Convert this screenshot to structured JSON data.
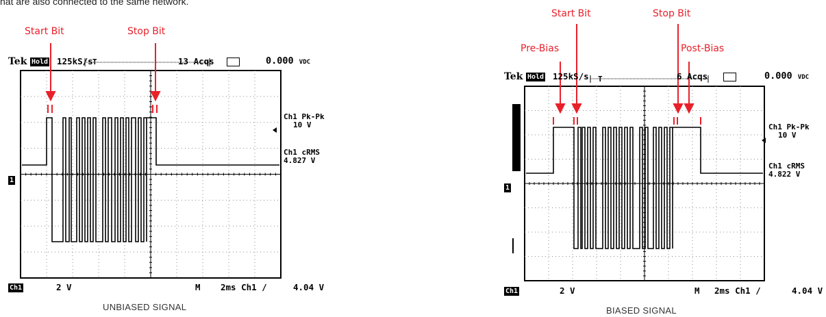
{
  "top_text": "hat are also connected to the same network.",
  "scopes": [
    {
      "id": "unbiased",
      "annotations": {
        "start": "Start Bit",
        "stop": "Stop Bit"
      },
      "header": {
        "tek": "Tek",
        "hold": "Hold",
        "rate": "125kS/s",
        "acqs": "13 Acqs",
        "vdc": "0.000",
        "vdc_unit": "VDC"
      },
      "pkpk": {
        "label": "Ch1 Pk-Pk",
        "value": "10 V"
      },
      "crms": {
        "label": "Ch1 cRMS",
        "value": "4.827 V"
      },
      "ground_marker": "1",
      "footer": {
        "channel": "Ch1",
        "volts": "2 V",
        "m": "M",
        "timebase": "2ms Ch1 ∕",
        "trigger": "4.04 V"
      },
      "caption": "UNBIASED SIGNAL"
    },
    {
      "id": "biased",
      "annotations": {
        "start": "Start Bit",
        "stop": "Stop Bit",
        "prebias": "Pre-Bias",
        "postbias": "Post-Bias"
      },
      "header": {
        "tek": "Tek",
        "hold": "Hold",
        "rate": "125kS/s",
        "acqs": "6 Acqs",
        "vdc": "0.000",
        "vdc_unit": "VDC"
      },
      "pkpk": {
        "label": "Ch1 Pk-Pk",
        "value": "10 V"
      },
      "crms": {
        "label": "Ch1 cRMS",
        "value": "4.822 V"
      },
      "ground_marker": "1",
      "footer": {
        "channel": "Ch1",
        "volts": "2 V",
        "m": "M",
        "timebase": "2ms Ch1 ∕",
        "trigger": "4.04 V"
      },
      "caption": "BIASED SIGNAL"
    }
  ],
  "colors": {
    "annotation": "#e8202a",
    "trace": "#000000",
    "grid": "#777777"
  }
}
